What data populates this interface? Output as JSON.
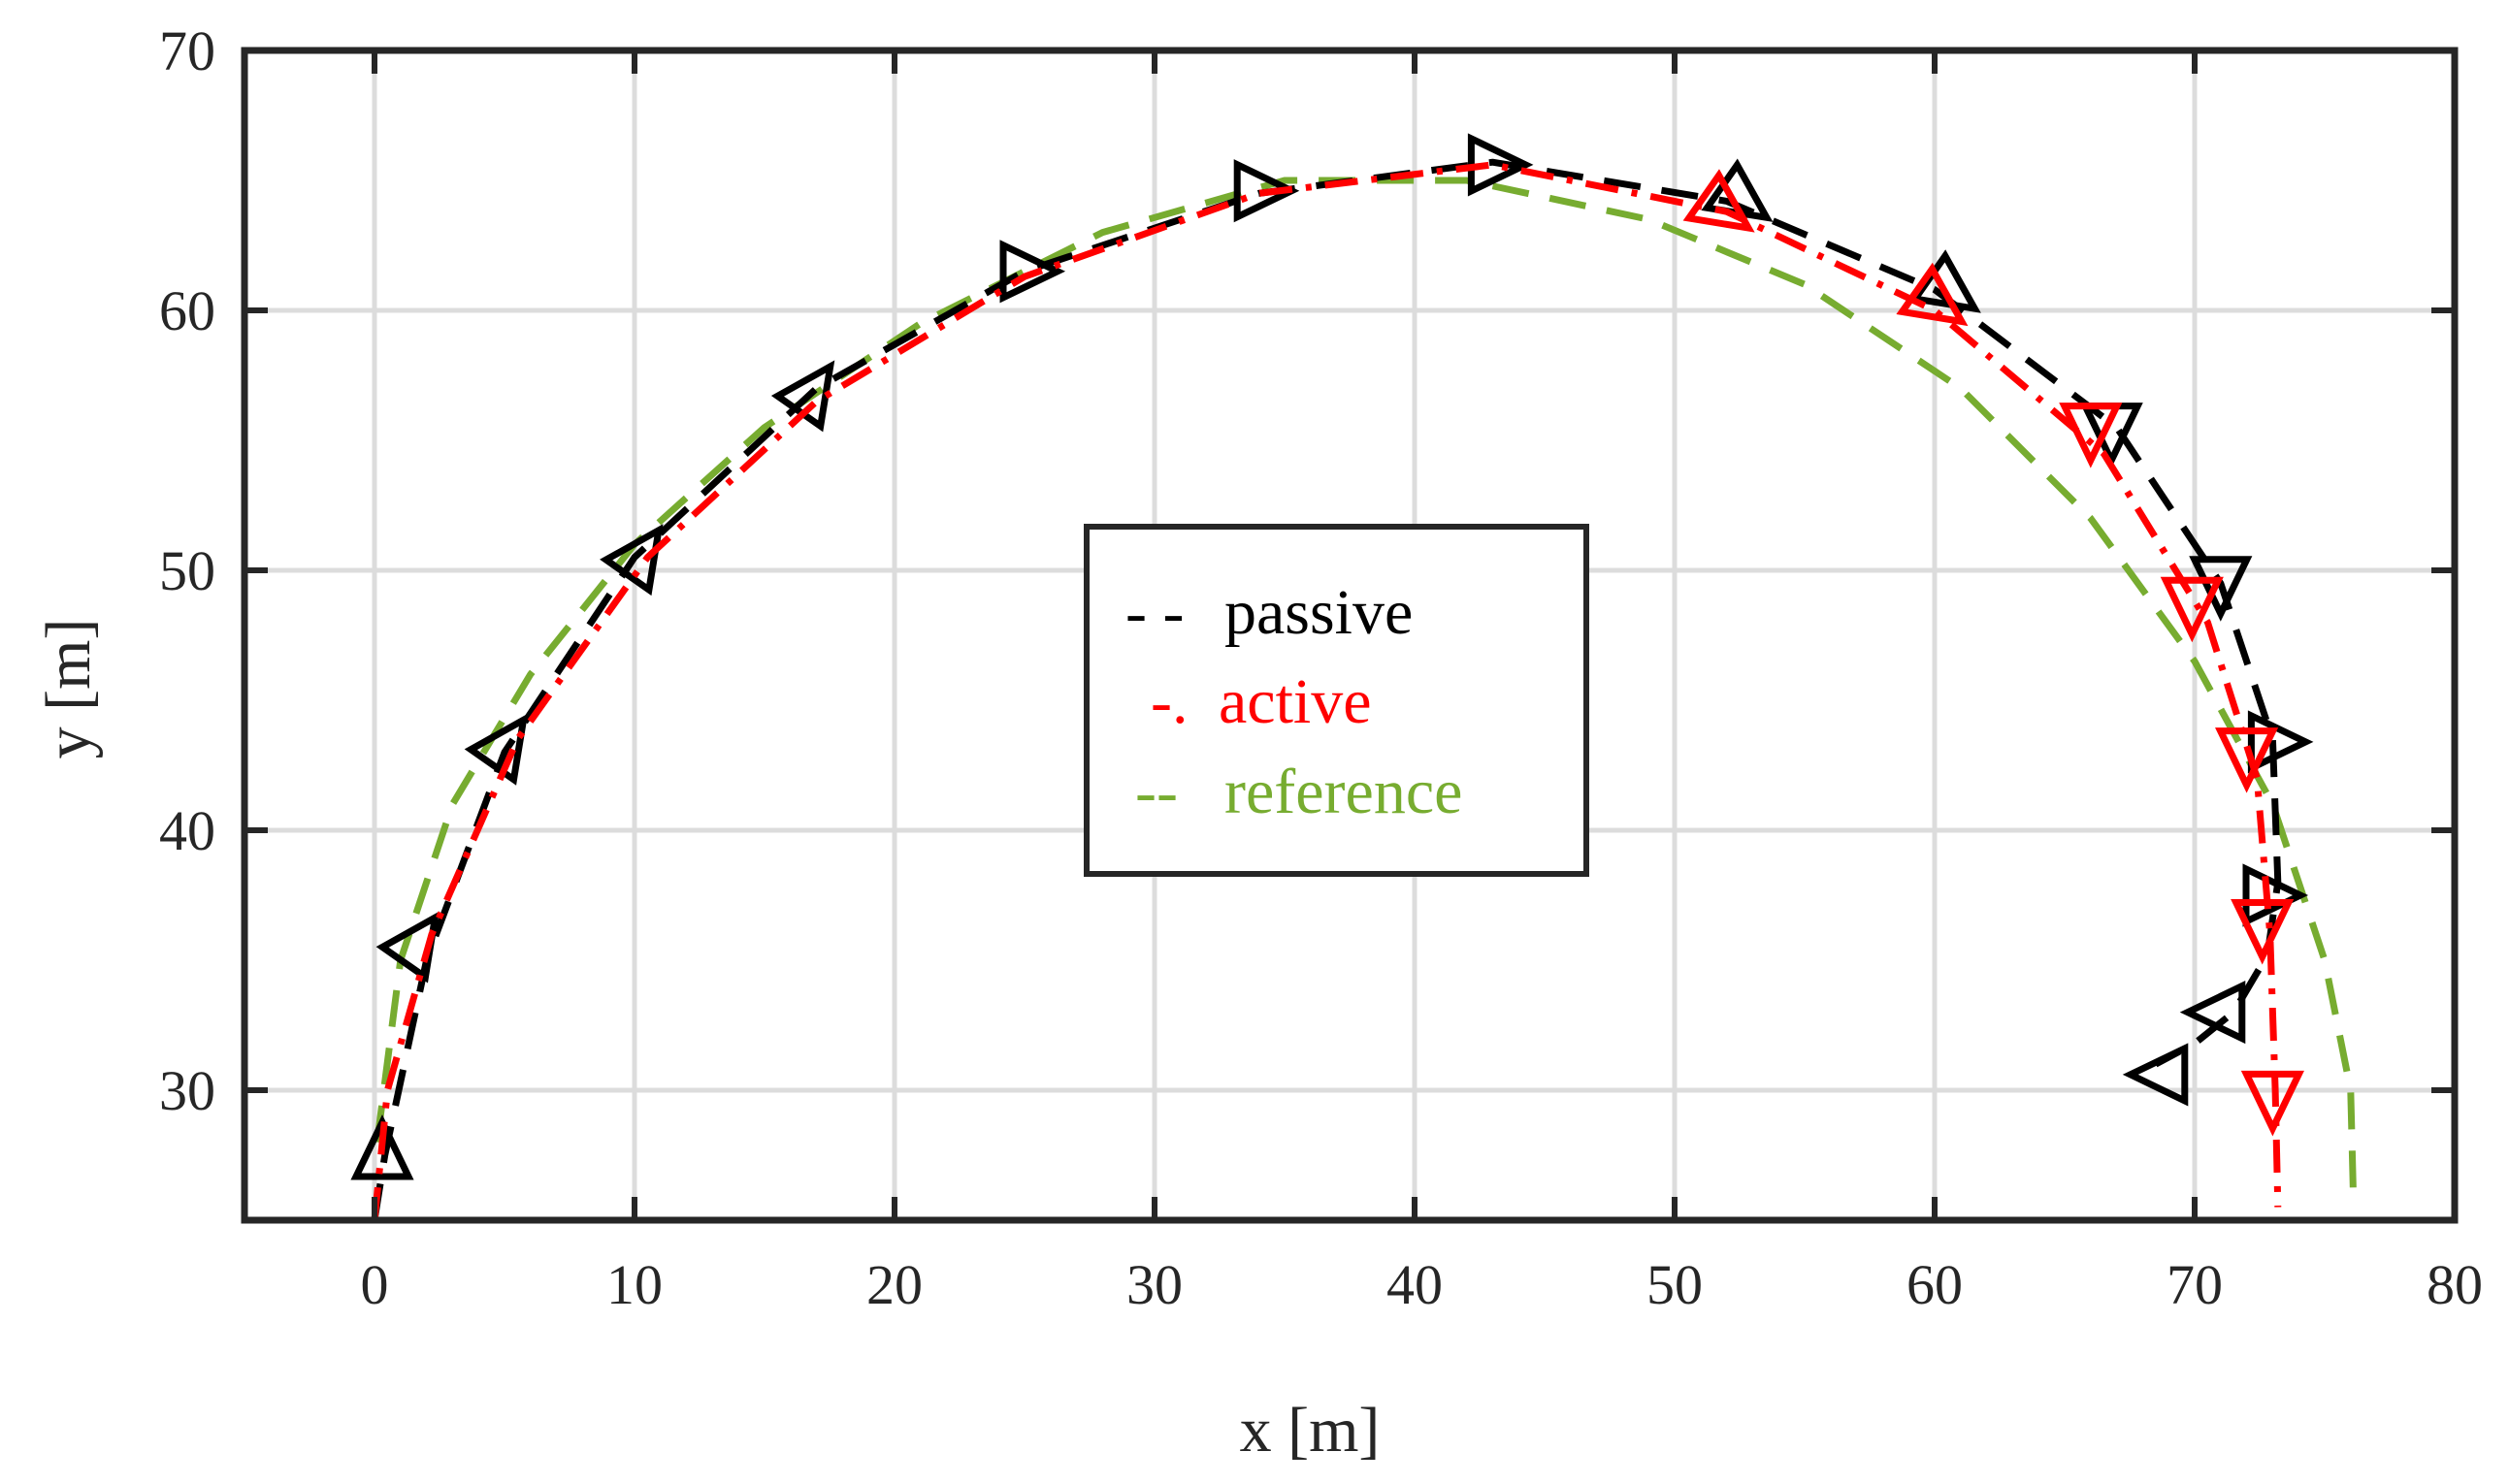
{
  "chart_data": {
    "type": "line",
    "title": "",
    "xlabel": "x [m]",
    "ylabel": "y [m]",
    "xlim": [
      -5,
      80
    ],
    "ylim": [
      25,
      70
    ],
    "xticks": [
      0,
      10,
      20,
      30,
      40,
      50,
      60,
      70,
      80
    ],
    "yticks": [
      30,
      40,
      50,
      60,
      70
    ],
    "grid": true,
    "legend": {
      "position": "center",
      "entries": [
        {
          "marker": "- -",
          "label": "passive",
          "color": "#000000"
        },
        {
          "marker": "-.",
          "label": "active",
          "color": "#ff0000"
        },
        {
          "marker": "--",
          "label": "reference",
          "color": "#77ac30"
        }
      ]
    },
    "series": [
      {
        "name": "reference",
        "color": "#77ac30",
        "style": "dashed",
        "x": [
          0.1,
          1,
          3,
          6,
          10,
          15,
          21,
          28,
          35,
          42,
          49,
          55,
          61,
          66,
          70,
          73,
          75,
          76,
          76.1
        ],
        "y": [
          28,
          35,
          41,
          46,
          51,
          55.5,
          59.5,
          63,
          65,
          65,
          63.5,
          61,
          57,
          52,
          46.5,
          41,
          35,
          30,
          26
        ]
      },
      {
        "name": "passive",
        "color": "#000000",
        "style": "dashed",
        "x": [
          0,
          0.4,
          2,
          5,
          10,
          17,
          25,
          34,
          43,
          52,
          60,
          67,
          71,
          73,
          73.2,
          72.8,
          71.5,
          70,
          68.5
        ],
        "y": [
          25,
          27.5,
          35,
          43,
          50.5,
          57,
          61.5,
          64.5,
          65.7,
          64.2,
          60.8,
          55.5,
          49.5,
          43.5,
          38,
          35.2,
          33,
          31.8,
          31
        ],
        "markers": [
          {
            "x": 0.3,
            "y": 27.5,
            "dir": "up"
          },
          {
            "x": 1.6,
            "y": 35.6,
            "dir": "up-right"
          },
          {
            "x": 5,
            "y": 43.2,
            "dir": "up-right"
          },
          {
            "x": 10.2,
            "y": 50.5,
            "dir": "up-right"
          },
          {
            "x": 16.8,
            "y": 56.8,
            "dir": "up-right"
          },
          {
            "x": 25,
            "y": 61.5,
            "dir": "right"
          },
          {
            "x": 34,
            "y": 64.6,
            "dir": "right"
          },
          {
            "x": 43,
            "y": 65.6,
            "dir": "right"
          },
          {
            "x": 52.5,
            "y": 64.3,
            "dir": "down-right"
          },
          {
            "x": 60.5,
            "y": 60.8,
            "dir": "down-right"
          },
          {
            "x": 66.8,
            "y": 55.5,
            "dir": "down"
          },
          {
            "x": 71,
            "y": 49.6,
            "dir": "down"
          },
          {
            "x": 73,
            "y": 43.4,
            "dir": "right"
          },
          {
            "x": 72.8,
            "y": 37.5,
            "dir": "right"
          },
          {
            "x": 71,
            "y": 33,
            "dir": "left"
          },
          {
            "x": 68.8,
            "y": 30.6,
            "dir": "left"
          }
        ]
      },
      {
        "name": "active",
        "color": "#ff0000",
        "style": "dashdot",
        "x": [
          0,
          0.5,
          2.2,
          5.5,
          10.5,
          17,
          25,
          34,
          43,
          52,
          60,
          66.5,
          70.5,
          72.4,
          72.9,
          73.1,
          73.2
        ],
        "y": [
          25,
          30,
          36,
          43.5,
          50.5,
          56.5,
          61.3,
          64.5,
          65.6,
          63.8,
          60,
          54.5,
          48,
          42,
          36,
          30,
          25.5
        ],
        "markers": [
          {
            "x": 51.8,
            "y": 63.9,
            "dir": "down-right"
          },
          {
            "x": 60,
            "y": 60.3,
            "dir": "down-right"
          },
          {
            "x": 66,
            "y": 55.5,
            "dir": "down"
          },
          {
            "x": 69.9,
            "y": 48.8,
            "dir": "down"
          },
          {
            "x": 72,
            "y": 43,
            "dir": "down"
          },
          {
            "x": 72.6,
            "y": 36.4,
            "dir": "down"
          },
          {
            "x": 73,
            "y": 29.8,
            "dir": "down"
          }
        ]
      }
    ]
  }
}
